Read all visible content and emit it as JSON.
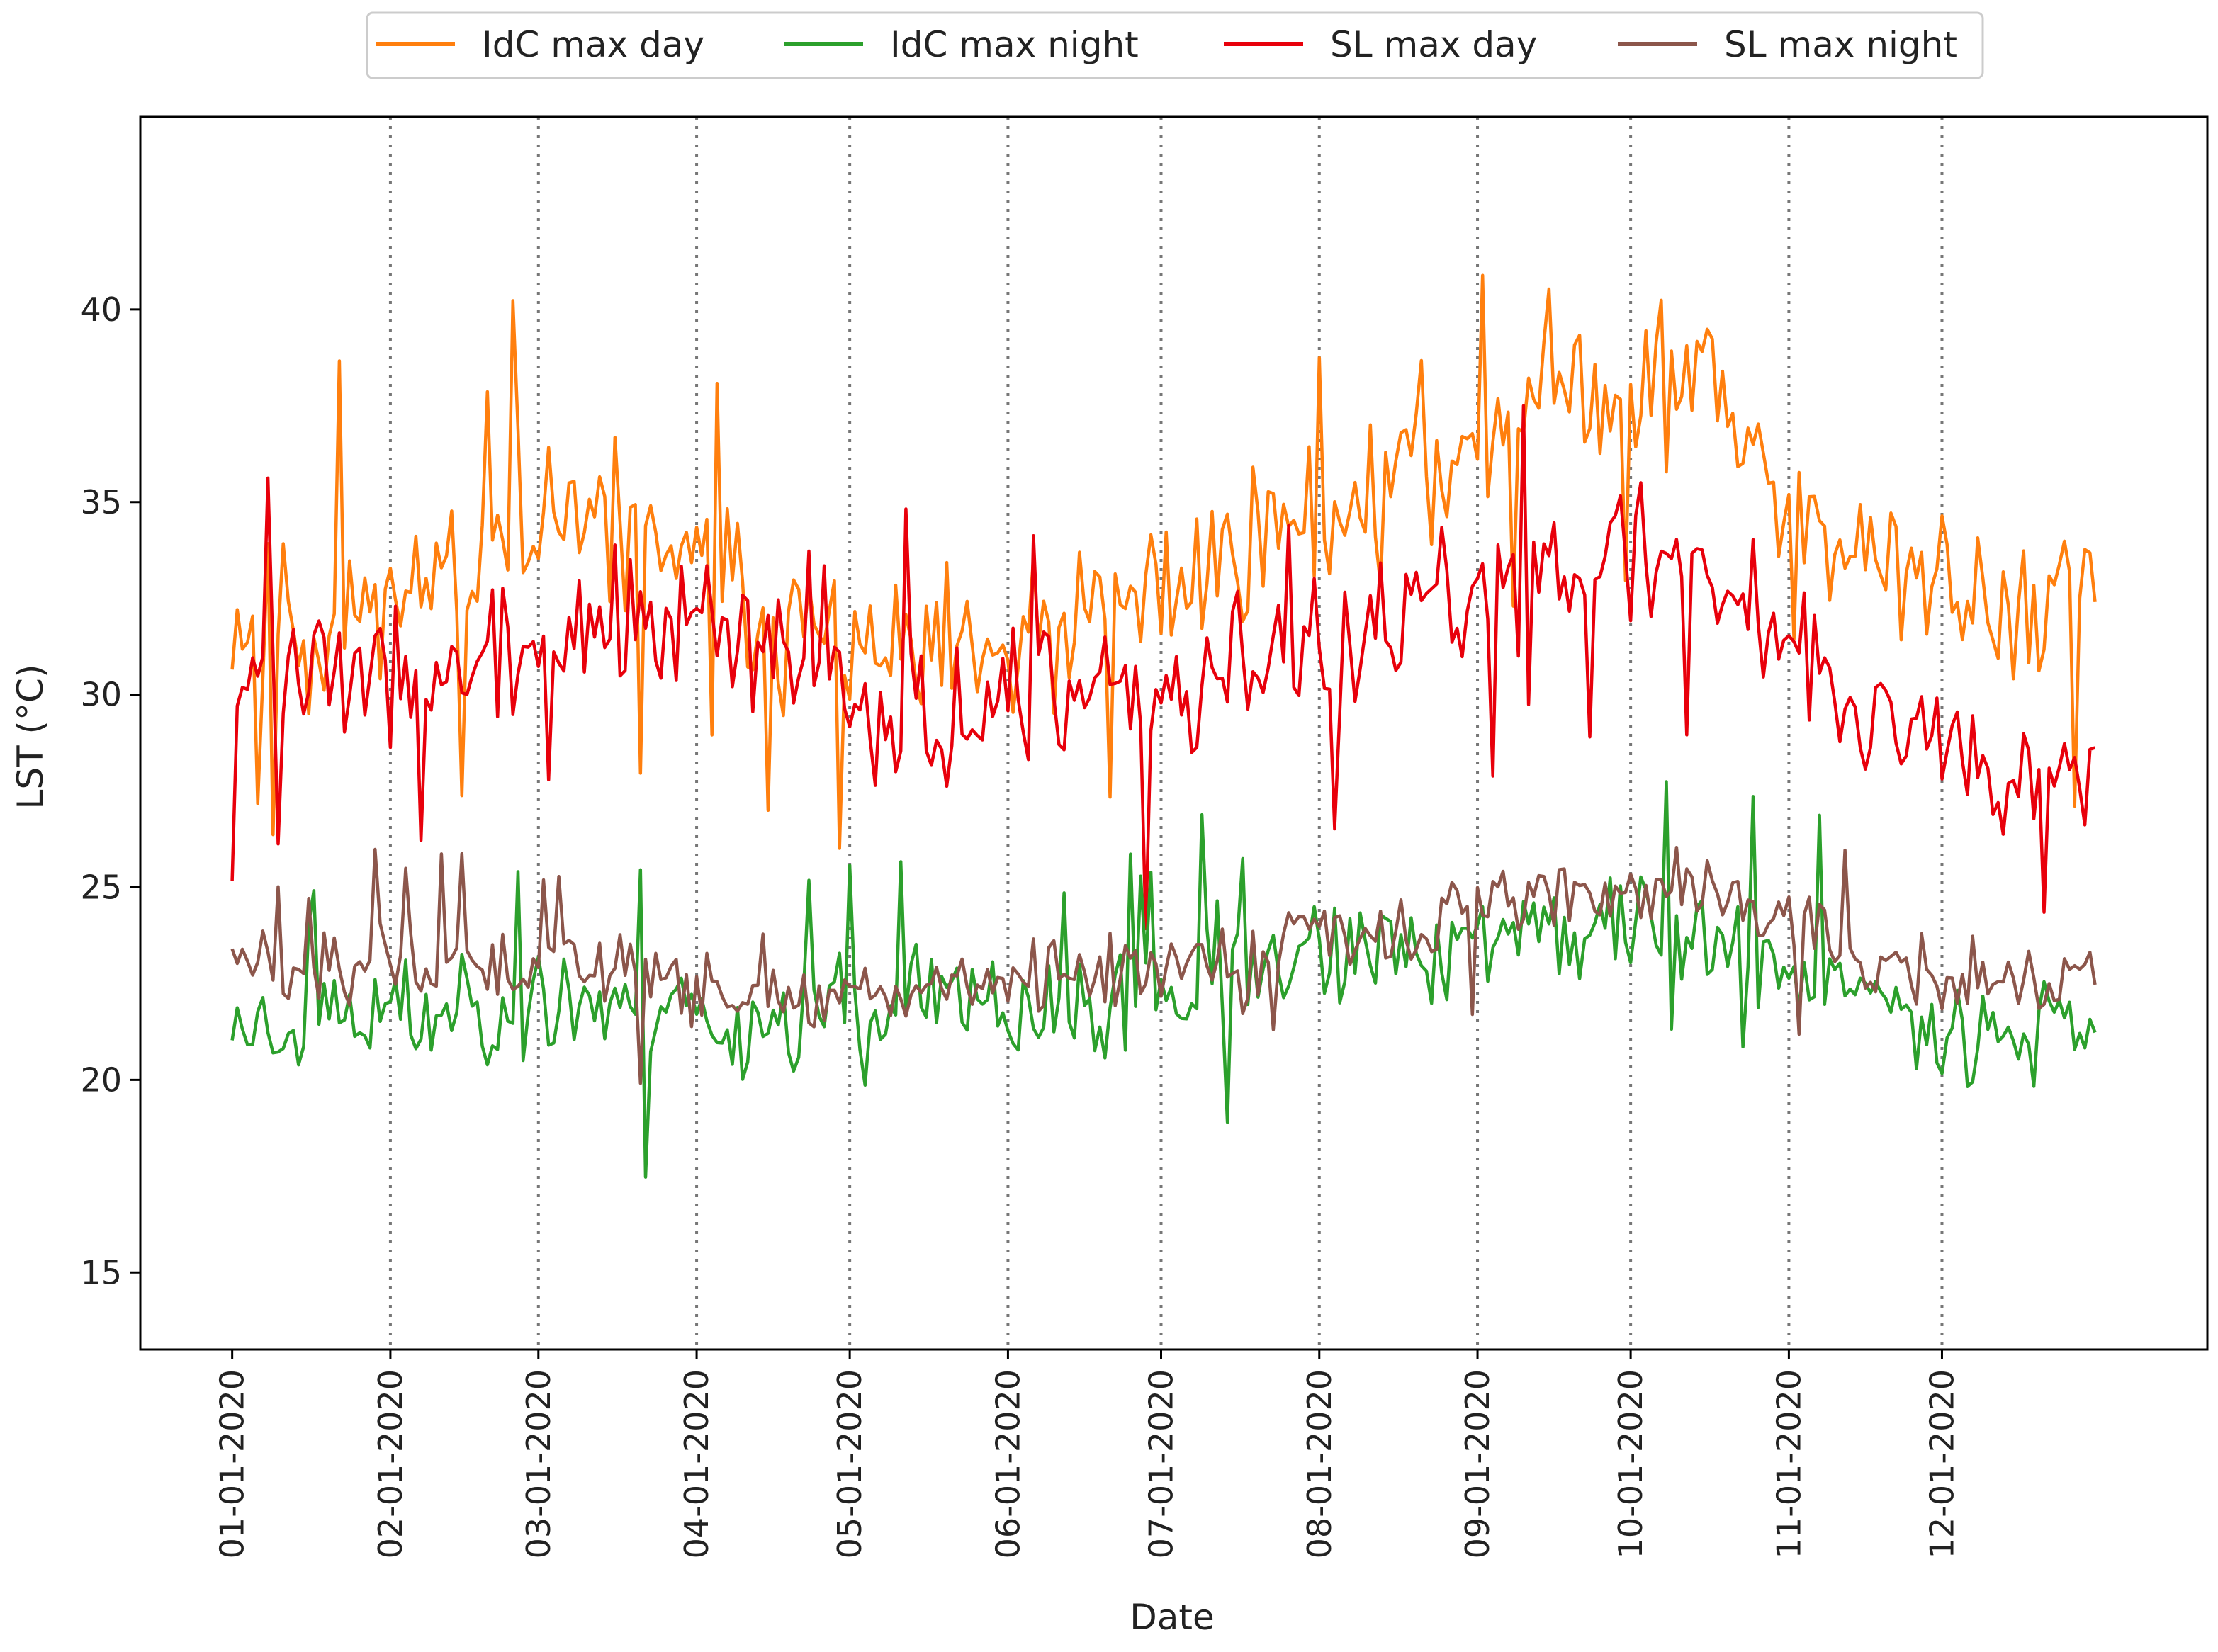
{
  "chart_data": {
    "type": "line",
    "title": "",
    "xlabel": "Date",
    "ylabel": "LST (°C)",
    "ylim": [
      13,
      45
    ],
    "xlim_days": [
      -18,
      387
    ],
    "yticks": [
      15,
      20,
      25,
      30,
      35,
      40
    ],
    "xticks": [
      {
        "label": "01-01-2020",
        "day": 0
      },
      {
        "label": "02-01-2020",
        "day": 31
      },
      {
        "label": "03-01-2020",
        "day": 60
      },
      {
        "label": "04-01-2020",
        "day": 91
      },
      {
        "label": "05-01-2020",
        "day": 121
      },
      {
        "label": "06-01-2020",
        "day": 152
      },
      {
        "label": "07-01-2020",
        "day": 182
      },
      {
        "label": "08-01-2020",
        "day": 213
      },
      {
        "label": "09-01-2020",
        "day": 244
      },
      {
        "label": "10-01-2020",
        "day": 274
      },
      {
        "label": "11-01-2020",
        "day": 305
      },
      {
        "label": "12-01-2020",
        "day": 335
      }
    ],
    "vlines_days": [
      31,
      60,
      91,
      121,
      152,
      182,
      213,
      244,
      274,
      305,
      335
    ],
    "legend": {
      "placement": "top-center, above plot",
      "columns": 4
    },
    "series": [
      {
        "name": "IdC max day",
        "color": "#ff7f0e",
        "amplitude": 3.2,
        "seed": 11,
        "monthly_means": [
          32.0,
          33.5,
          34.5,
          32.0,
          30.5,
          31.5,
          34.0,
          35.5,
          38.0,
          38.0,
          33.0,
          32.5
        ]
      },
      {
        "name": "IdC max night",
        "color": "#2ca02c",
        "amplitude": 2.2,
        "seed": 23,
        "monthly_means": [
          21.5,
          22.0,
          22.0,
          21.5,
          22.0,
          21.5,
          22.5,
          23.5,
          24.0,
          24.0,
          22.0,
          21.5
        ]
      },
      {
        "name": "SL max day",
        "color": "#e8000b",
        "amplitude": 2.8,
        "seed": 37,
        "monthly_means": [
          30.5,
          30.5,
          32.0,
          31.0,
          29.5,
          29.5,
          30.5,
          31.5,
          33.5,
          33.5,
          29.5,
          28.5
        ]
      },
      {
        "name": "SL max night",
        "color": "#8c564b",
        "amplitude": 1.5,
        "seed": 51,
        "monthly_means": [
          23.0,
          23.0,
          23.0,
          22.0,
          22.5,
          22.5,
          23.0,
          24.0,
          25.0,
          25.0,
          23.0,
          22.5
        ]
      }
    ]
  }
}
